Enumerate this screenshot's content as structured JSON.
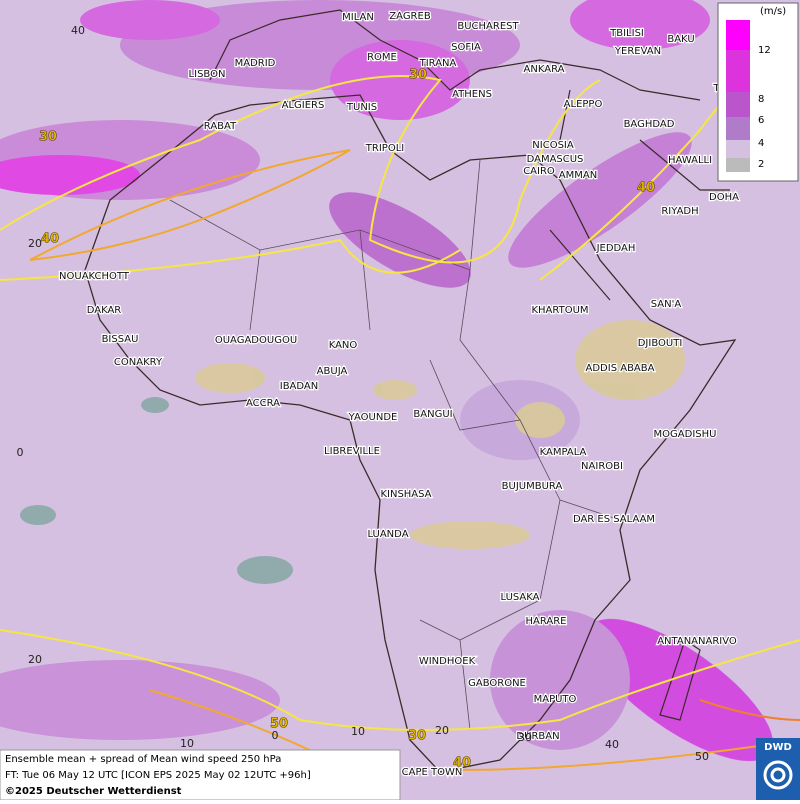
{
  "legend": {
    "unit": "(m/s)",
    "ticks": [
      12,
      8,
      6,
      4,
      2
    ]
  },
  "cities": [
    "MILAN",
    "ZAGREB",
    "BUCHAREST",
    "TBILISI",
    "BAKU",
    "ROME",
    "SOFIA",
    "YEREVAN",
    "MADRID",
    "TIRANA",
    "LISBON",
    "ANKARA",
    "ATHENS",
    "TEHRA",
    "ALGIERS",
    "TUNIS",
    "ALEPPO",
    "RABAT",
    "NICOSIA",
    "BAGHDAD",
    "DAMASCUS",
    "TRIPOLI",
    "AMMAN",
    "HAWALLI",
    "CAIRO",
    "DOHA",
    "RIYADH",
    "JEDDAH",
    "NOUAKCHOTT",
    "SAN'A",
    "KHARTOUM",
    "DAKAR",
    "BISSAU",
    "DJIBOUTI",
    "OUAGADOUGOU",
    "KANO",
    "CONAKRY",
    "ADDIS ABABA",
    "ABUJA",
    "IBADAN",
    "ACCRA",
    "YAOUNDE",
    "BANGUI",
    "MOGADISHU",
    "LIBREVILLE",
    "KAMPALA",
    "NAIROBI",
    "BUJUMBURA",
    "KINSHASA",
    "DAR ES SALAAM",
    "LUANDA",
    "LUSAKA",
    "HARARE",
    "ANTANANARIVO",
    "WINDHOEK",
    "GABORONE",
    "MAPUTO",
    "DURBAN",
    "CAPE TOWN"
  ],
  "contour_labels": [
    "30",
    "30",
    "40",
    "40",
    "50",
    "30",
    "40"
  ],
  "grid_labels": [
    "40",
    "20",
    "0",
    "20",
    "10",
    "0",
    "10",
    "20",
    "30",
    "40",
    "50"
  ],
  "footer": {
    "line1": "Ensemble mean + spread of Mean wind speed 250 hPa",
    "line2": "FT: Tue 06 May 12 UTC [ICON EPS 2025 May 02 12UTC +96h]",
    "line3": "©2025 Deutscher Wetterdienst"
  },
  "logo": "DWD"
}
